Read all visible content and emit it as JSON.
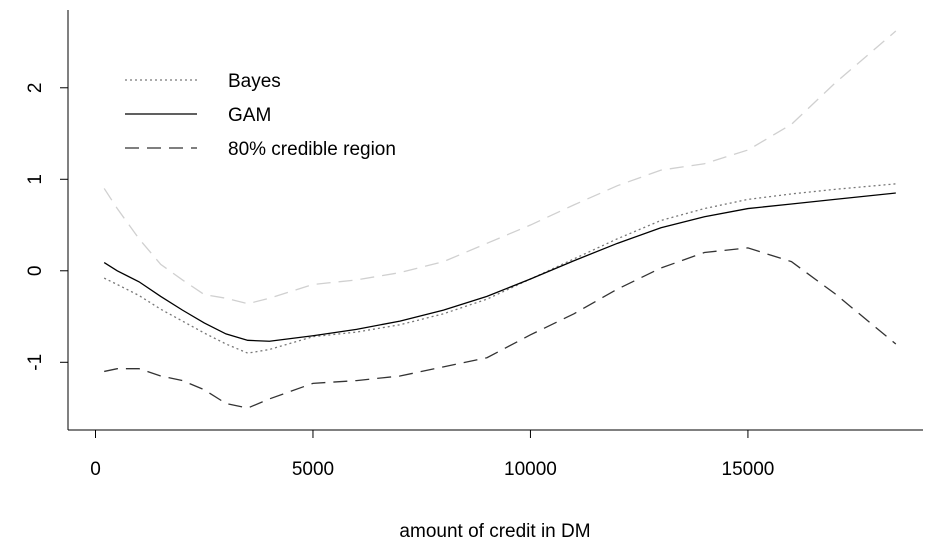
{
  "chart_data": {
    "type": "line",
    "xlabel": "amount of credit in DM",
    "x": [
      200,
      500,
      1000,
      1500,
      2000,
      2500,
      3000,
      3500,
      4000,
      5000,
      6000,
      7000,
      8000,
      9000,
      10000,
      11000,
      12000,
      13000,
      14000,
      15000,
      16000,
      17000,
      18400
    ],
    "series": [
      {
        "name": "Bayes",
        "color": "#777777",
        "linestyle": "dotted",
        "values": [
          -0.08,
          -0.15,
          -0.27,
          -0.42,
          -0.55,
          -0.68,
          -0.8,
          -0.9,
          -0.86,
          -0.72,
          -0.67,
          -0.59,
          -0.47,
          -0.31,
          -0.09,
          0.13,
          0.35,
          0.55,
          0.68,
          0.78,
          0.84,
          0.89,
          0.95
        ]
      },
      {
        "name": "GAM",
        "color": "#000000",
        "linestyle": "solid",
        "values": [
          0.09,
          0.0,
          -0.12,
          -0.28,
          -0.43,
          -0.57,
          -0.69,
          -0.76,
          -0.77,
          -0.71,
          -0.64,
          -0.55,
          -0.43,
          -0.28,
          -0.09,
          0.11,
          0.3,
          0.47,
          0.59,
          0.68,
          0.73,
          0.78,
          0.85
        ]
      },
      {
        "name": "80% credible region",
        "color": "#333333",
        "upper_color": "#d0d0d0",
        "linestyle": "dashed",
        "upper": [
          0.9,
          0.68,
          0.35,
          0.07,
          -0.1,
          -0.26,
          -0.3,
          -0.36,
          -0.3,
          -0.15,
          -0.1,
          -0.02,
          0.1,
          0.3,
          0.5,
          0.72,
          0.93,
          1.1,
          1.17,
          1.32,
          1.6,
          2.05,
          2.62
        ],
        "lower": [
          -1.1,
          -1.07,
          -1.07,
          -1.15,
          -1.2,
          -1.3,
          -1.45,
          -1.5,
          -1.4,
          -1.23,
          -1.2,
          -1.15,
          -1.05,
          -0.95,
          -0.7,
          -0.47,
          -0.2,
          0.03,
          0.2,
          0.25,
          0.1,
          -0.25,
          -0.8
        ]
      }
    ],
    "xlim": [
      -632,
      19025
    ],
    "xticks": [
      0,
      5000,
      10000,
      15000
    ],
    "ylim": [
      -1.74,
      2.85
    ],
    "yticks": [
      -1,
      0,
      1,
      2
    ],
    "legend": "top-left"
  }
}
